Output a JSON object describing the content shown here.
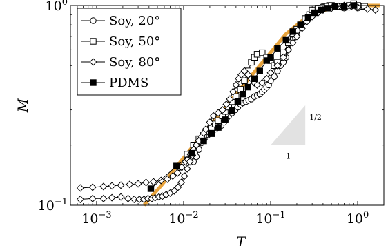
{
  "chart_data": {
    "type": "scatter",
    "x_scale": "log",
    "y_scale": "log",
    "xlim": [
      0.0005,
      2
    ],
    "ylim": [
      0.1,
      1
    ],
    "xlabel": "T",
    "ylabel": "M",
    "x_ticks": [
      {
        "value": 0.001,
        "base": "10",
        "exp": "−3"
      },
      {
        "value": 0.01,
        "base": "10",
        "exp": "−2"
      },
      {
        "value": 0.1,
        "base": "10",
        "exp": "−1"
      },
      {
        "value": 1,
        "base": "10",
        "exp": "0"
      }
    ],
    "y_ticks": [
      {
        "value": 0.1,
        "base": "10",
        "exp": "−1"
      },
      {
        "value": 1,
        "base": "10",
        "exp": "0"
      }
    ],
    "legend_position": "top-left",
    "slope_triangle": {
      "label_rise": "1/2",
      "label_run": "1",
      "x0": 0.1,
      "x1": 0.25,
      "y_base": 0.2,
      "slope": 0.5
    },
    "fit_line": {
      "color": "#e8a33b",
      "points": [
        [
          0.0035,
          0.1
        ],
        [
          0.0055,
          0.125
        ],
        [
          0.015,
          0.215
        ],
        [
          0.15,
          0.72
        ],
        [
          0.28,
          0.9
        ],
        [
          0.5,
          0.97
        ],
        [
          1.0,
          1.0
        ],
        [
          1.8,
          1.0
        ]
      ]
    },
    "series": [
      {
        "name": "Soy, 20°",
        "marker": "circle",
        "points": [
          [
            0.013,
            0.165
          ],
          [
            0.014,
            0.175
          ],
          [
            0.015,
            0.19
          ],
          [
            0.016,
            0.205
          ],
          [
            0.017,
            0.21
          ],
          [
            0.018,
            0.22
          ],
          [
            0.019,
            0.225
          ],
          [
            0.02,
            0.23
          ],
          [
            0.021,
            0.235
          ],
          [
            0.023,
            0.24
          ],
          [
            0.025,
            0.245
          ],
          [
            0.027,
            0.25
          ],
          [
            0.029,
            0.26
          ],
          [
            0.031,
            0.27
          ],
          [
            0.033,
            0.28
          ],
          [
            0.036,
            0.29
          ],
          [
            0.039,
            0.3
          ],
          [
            0.042,
            0.31
          ],
          [
            0.045,
            0.32
          ],
          [
            0.048,
            0.325
          ],
          [
            0.052,
            0.33
          ],
          [
            0.056,
            0.335
          ],
          [
            0.06,
            0.34
          ],
          [
            0.065,
            0.35
          ],
          [
            0.07,
            0.355
          ],
          [
            0.075,
            0.36
          ],
          [
            0.08,
            0.37
          ],
          [
            0.085,
            0.38
          ],
          [
            0.09,
            0.39
          ],
          [
            0.095,
            0.4
          ],
          [
            0.1,
            0.42
          ],
          [
            0.11,
            0.44
          ],
          [
            0.12,
            0.47
          ],
          [
            0.13,
            0.5
          ],
          [
            0.14,
            0.52
          ],
          [
            0.15,
            0.55
          ],
          [
            0.16,
            0.6
          ],
          [
            0.17,
            0.65
          ],
          [
            0.18,
            0.68
          ],
          [
            0.19,
            0.7
          ],
          [
            0.2,
            0.72
          ],
          [
            0.22,
            0.78
          ],
          [
            0.25,
            0.84
          ],
          [
            0.28,
            0.88
          ],
          [
            0.3,
            0.9
          ],
          [
            0.32,
            0.94
          ],
          [
            0.35,
            0.97
          ],
          [
            0.4,
            0.99
          ],
          [
            0.45,
            1.0
          ],
          [
            0.5,
            0.98
          ],
          [
            0.6,
            0.99
          ],
          [
            0.7,
            0.97
          ],
          [
            0.8,
            0.98
          ],
          [
            0.9,
            1.0
          ],
          [
            1.0,
            0.97
          ],
          [
            1.1,
            0.99
          ]
        ]
      },
      {
        "name": "Soy, 50°",
        "marker": "square",
        "points": [
          [
            0.009,
            0.155
          ],
          [
            0.011,
            0.18
          ],
          [
            0.013,
            0.2
          ],
          [
            0.015,
            0.215
          ],
          [
            0.017,
            0.225
          ],
          [
            0.019,
            0.235
          ],
          [
            0.021,
            0.245
          ],
          [
            0.023,
            0.255
          ],
          [
            0.025,
            0.265
          ],
          [
            0.028,
            0.28
          ],
          [
            0.03,
            0.295
          ],
          [
            0.033,
            0.31
          ],
          [
            0.036,
            0.33
          ],
          [
            0.04,
            0.35
          ],
          [
            0.045,
            0.38
          ],
          [
            0.05,
            0.42
          ],
          [
            0.055,
            0.47
          ],
          [
            0.06,
            0.52
          ],
          [
            0.065,
            0.55
          ],
          [
            0.07,
            0.57
          ],
          [
            0.08,
            0.58
          ],
          [
            0.09,
            0.55
          ],
          [
            0.1,
            0.53
          ],
          [
            0.11,
            0.5
          ],
          [
            0.12,
            0.52
          ],
          [
            0.14,
            0.58
          ],
          [
            0.16,
            0.65
          ],
          [
            0.18,
            0.72
          ],
          [
            0.2,
            0.76
          ],
          [
            0.22,
            0.8
          ],
          [
            0.25,
            0.86
          ],
          [
            0.28,
            0.9
          ],
          [
            0.3,
            0.95
          ],
          [
            0.35,
            0.97
          ],
          [
            0.4,
            0.98
          ],
          [
            0.45,
            0.99
          ],
          [
            0.5,
            1.0
          ],
          [
            0.6,
            0.99
          ],
          [
            0.7,
            0.98
          ],
          [
            0.8,
            1.0
          ],
          [
            0.9,
            1.02
          ],
          [
            1.0,
            1.0
          ],
          [
            1.2,
            0.99
          ]
        ]
      },
      {
        "name": "Soy, 80°",
        "marker": "diamond",
        "points": [
          [
            0.00065,
            0.122
          ],
          [
            0.0009,
            0.123
          ],
          [
            0.0012,
            0.124
          ],
          [
            0.0015,
            0.125
          ],
          [
            0.0019,
            0.126
          ],
          [
            0.0024,
            0.127
          ],
          [
            0.003,
            0.128
          ],
          [
            0.0037,
            0.13
          ],
          [
            0.0045,
            0.131
          ],
          [
            0.0055,
            0.133
          ],
          [
            0.0065,
            0.135
          ],
          [
            0.0075,
            0.14
          ],
          [
            0.0085,
            0.145
          ],
          [
            0.0095,
            0.155
          ],
          [
            0.0105,
            0.165
          ],
          [
            0.011,
            0.17
          ],
          [
            0.012,
            0.18
          ],
          [
            0.013,
            0.19
          ],
          [
            0.014,
            0.2
          ],
          [
            0.015,
            0.21
          ],
          [
            0.016,
            0.22
          ],
          [
            0.017,
            0.23
          ],
          [
            0.018,
            0.24
          ],
          [
            0.02,
            0.26
          ],
          [
            0.022,
            0.28
          ],
          [
            0.025,
            0.29
          ],
          [
            0.028,
            0.3
          ],
          [
            0.031,
            0.32
          ],
          [
            0.034,
            0.34
          ],
          [
            0.037,
            0.37
          ],
          [
            0.04,
            0.4
          ],
          [
            0.043,
            0.43
          ],
          [
            0.046,
            0.45
          ],
          [
            0.05,
            0.47
          ],
          [
            0.055,
            0.45
          ],
          [
            0.06,
            0.43
          ],
          [
            0.065,
            0.41
          ],
          [
            0.07,
            0.4
          ],
          [
            0.08,
            0.41
          ],
          [
            0.09,
            0.43
          ],
          [
            0.1,
            0.46
          ],
          [
            0.12,
            0.5
          ],
          [
            0.14,
            0.55
          ],
          [
            0.16,
            0.6
          ],
          [
            0.18,
            0.65
          ],
          [
            0.2,
            0.7
          ],
          [
            0.23,
            0.77
          ],
          [
            0.26,
            0.83
          ],
          [
            0.3,
            0.88
          ],
          [
            0.35,
            0.92
          ],
          [
            0.4,
            0.95
          ],
          [
            0.5,
            0.97
          ],
          [
            0.6,
            0.99
          ],
          [
            0.7,
            1.0
          ],
          [
            0.85,
            0.99
          ],
          [
            1.0,
            0.98
          ],
          [
            1.3,
            0.96
          ],
          [
            1.6,
            0.95
          ],
          [
            0.00065,
            0.107
          ],
          [
            0.0009,
            0.108
          ],
          [
            0.0012,
            0.108
          ],
          [
            0.0015,
            0.109
          ],
          [
            0.0019,
            0.11
          ],
          [
            0.0023,
            0.108
          ],
          [
            0.0027,
            0.107
          ],
          [
            0.0031,
            0.107
          ],
          [
            0.0035,
            0.107
          ],
          [
            0.0039,
            0.108
          ],
          [
            0.0043,
            0.108
          ],
          [
            0.0047,
            0.109
          ],
          [
            0.0052,
            0.11
          ],
          [
            0.0057,
            0.111
          ],
          [
            0.0063,
            0.113
          ],
          [
            0.007,
            0.115
          ],
          [
            0.0078,
            0.118
          ],
          [
            0.0086,
            0.123
          ],
          [
            0.0094,
            0.13
          ],
          [
            0.0102,
            0.14
          ],
          [
            0.011,
            0.152
          ],
          [
            0.0118,
            0.165
          ],
          [
            0.0126,
            0.178
          ]
        ]
      },
      {
        "name": "PDMS",
        "marker": "filled-square",
        "points": [
          [
            0.0042,
            0.121
          ],
          [
            0.0083,
            0.157
          ],
          [
            0.0125,
            0.182
          ],
          [
            0.017,
            0.21
          ],
          [
            0.021,
            0.228
          ],
          [
            0.025,
            0.245
          ],
          [
            0.03,
            0.268
          ],
          [
            0.036,
            0.298
          ],
          [
            0.042,
            0.33
          ],
          [
            0.048,
            0.36
          ],
          [
            0.055,
            0.39
          ],
          [
            0.065,
            0.43
          ],
          [
            0.075,
            0.47
          ],
          [
            0.09,
            0.53
          ],
          [
            0.1,
            0.55
          ],
          [
            0.12,
            0.61
          ],
          [
            0.15,
            0.67
          ],
          [
            0.18,
            0.74
          ],
          [
            0.22,
            0.8
          ],
          [
            0.27,
            0.87
          ],
          [
            0.32,
            0.92
          ],
          [
            0.38,
            0.95
          ],
          [
            0.45,
            0.97
          ],
          [
            0.55,
            0.99
          ],
          [
            0.7,
            0.99
          ],
          [
            0.9,
            1.0
          ]
        ]
      }
    ]
  }
}
